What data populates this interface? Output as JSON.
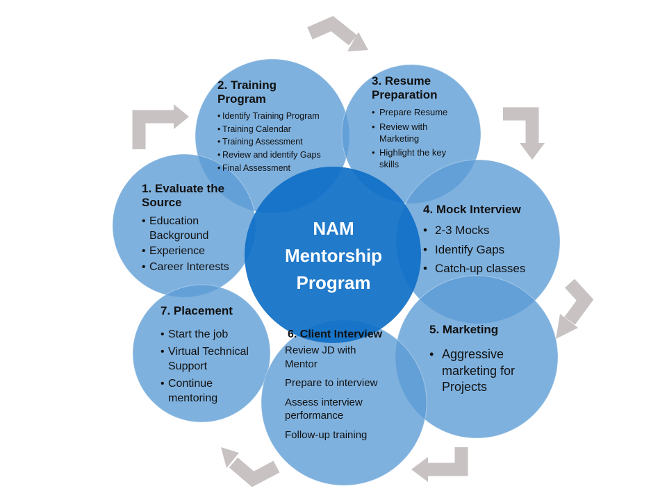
{
  "center": {
    "line1": "NAM",
    "line2": "Mentorship",
    "line3": "Program"
  },
  "steps": {
    "evaluate": {
      "title_line1": "1. Evaluate the",
      "title_line2": "Source",
      "items": [
        "Education Background",
        "Experience",
        "Career Interests"
      ]
    },
    "training": {
      "title_line1": "2. Training",
      "title_line2": "Program",
      "items": [
        "Identify Training Program",
        "Training Calendar",
        "Training Assessment",
        "Review and identify Gaps",
        "Final Assessment"
      ]
    },
    "resume": {
      "title_line1": "3. Resume",
      "title_line2": "Preparation",
      "items": [
        "Prepare Resume",
        "Review with Marketing",
        "Highlight the key skills"
      ]
    },
    "mock": {
      "title": "4. Mock Interview",
      "items": [
        "2-3 Mocks",
        "Identify Gaps",
        "Catch-up classes"
      ]
    },
    "marketing": {
      "title": "5.  Marketing",
      "items": [
        "Aggressive marketing for Projects"
      ]
    },
    "client": {
      "title": "6. Client Interview",
      "items": [
        "Review JD with Mentor",
        "Prepare to interview",
        "Assess interview performance",
        "Follow-up training"
      ]
    },
    "placement": {
      "title": "7.  Placement",
      "items": [
        "Start the job",
        "Virtual Technical Support",
        "Continue mentoring"
      ]
    }
  },
  "colors": {
    "outer_circle": "#5b9bd5",
    "center_circle": "#0f6fc6",
    "arrow": "#c8c2c2"
  }
}
